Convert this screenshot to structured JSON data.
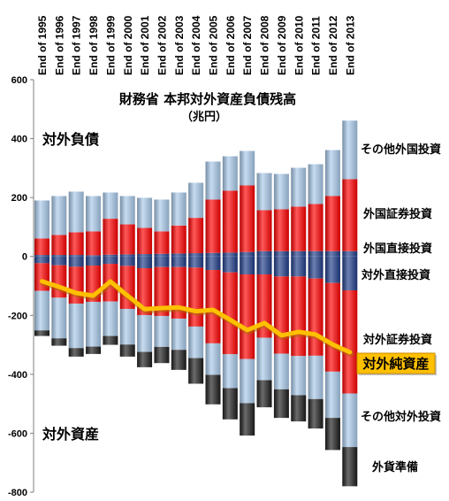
{
  "chart_data": {
    "type": "bar",
    "stacked": true,
    "title": "財務省 本邦対外資産負債残高",
    "subtitle": "（兆円）",
    "annotations": [
      "対外負債",
      "対外資産"
    ],
    "categories": [
      "End of 1995",
      "End of 1996",
      "End of 1997",
      "End of 1998",
      "End of 1999",
      "End of 2000",
      "End of 2001",
      "End of 2002",
      "End of 2003",
      "End of 2004",
      "End of 2005",
      "End of 2006",
      "End of 2007",
      "End of 2008",
      "End of 2009",
      "End of 2010",
      "End of 2011",
      "End of 2012",
      "End of 2013"
    ],
    "ylim": [
      -800,
      600
    ],
    "yticks": [
      600,
      400,
      200,
      0,
      -200,
      -400,
      -600,
      -800
    ],
    "grid": false,
    "legend": "right",
    "series": [
      {
        "name": "外国直接投資",
        "type": "bar",
        "color": "#1f3c88",
        "values": [
          5,
          5,
          5,
          4,
          6,
          7,
          8,
          9,
          10,
          11,
          12,
          13,
          15,
          18,
          18,
          18,
          18,
          18,
          18
        ]
      },
      {
        "name": "外国証券投資",
        "type": "bar",
        "color": "#ff0000",
        "values": [
          56,
          68,
          77,
          81,
          122,
          102,
          89,
          76,
          95,
          120,
          181,
          210,
          226,
          139,
          142,
          151,
          160,
          187,
          244
        ]
      },
      {
        "name": "その他外国投資",
        "type": "bar",
        "color": "#a9c9ea",
        "values": [
          129,
          132,
          138,
          120,
          89,
          96,
          102,
          108,
          112,
          119,
          129,
          117,
          117,
          126,
          120,
          132,
          135,
          156,
          199
        ]
      },
      {
        "name": "対外直接投資",
        "type": "bar",
        "color": "#1f3c88",
        "values": [
          -23,
          -30,
          -35,
          -31,
          -25,
          -32,
          -40,
          -36,
          -36,
          -38,
          -46,
          -54,
          -61,
          -61,
          -68,
          -68,
          -75,
          -90,
          -115
        ]
      },
      {
        "name": "対外証券投資",
        "type": "bar",
        "color": "#ff0000",
        "values": [
          -94,
          -110,
          -125,
          -123,
          -128,
          -146,
          -159,
          -166,
          -175,
          -200,
          -249,
          -278,
          -287,
          -215,
          -262,
          -270,
          -262,
          -301,
          -350
        ]
      },
      {
        "name": "その他対外投資",
        "type": "bar",
        "color": "#a9c9ea",
        "values": [
          -134,
          -138,
          -151,
          -152,
          -117,
          -121,
          -125,
          -105,
          -106,
          -107,
          -107,
          -115,
          -150,
          -144,
          -121,
          -133,
          -147,
          -157,
          -182
        ]
      },
      {
        "name": "外貨準備",
        "type": "bar",
        "color": "#1c1c1c",
        "values": [
          -19,
          -25,
          -29,
          -25,
          -30,
          -41,
          -52,
          -55,
          -68,
          -87,
          -100,
          -106,
          -110,
          -92,
          -97,
          -89,
          -100,
          -109,
          -133
        ]
      },
      {
        "name": "対外純資産",
        "type": "line",
        "color": "#ffc000",
        "values": [
          -84,
          -103,
          -124,
          -133,
          -85,
          -133,
          -179,
          -175,
          -173,
          -186,
          -181,
          -215,
          -250,
          -226,
          -268,
          -256,
          -265,
          -299,
          -325
        ]
      }
    ]
  }
}
